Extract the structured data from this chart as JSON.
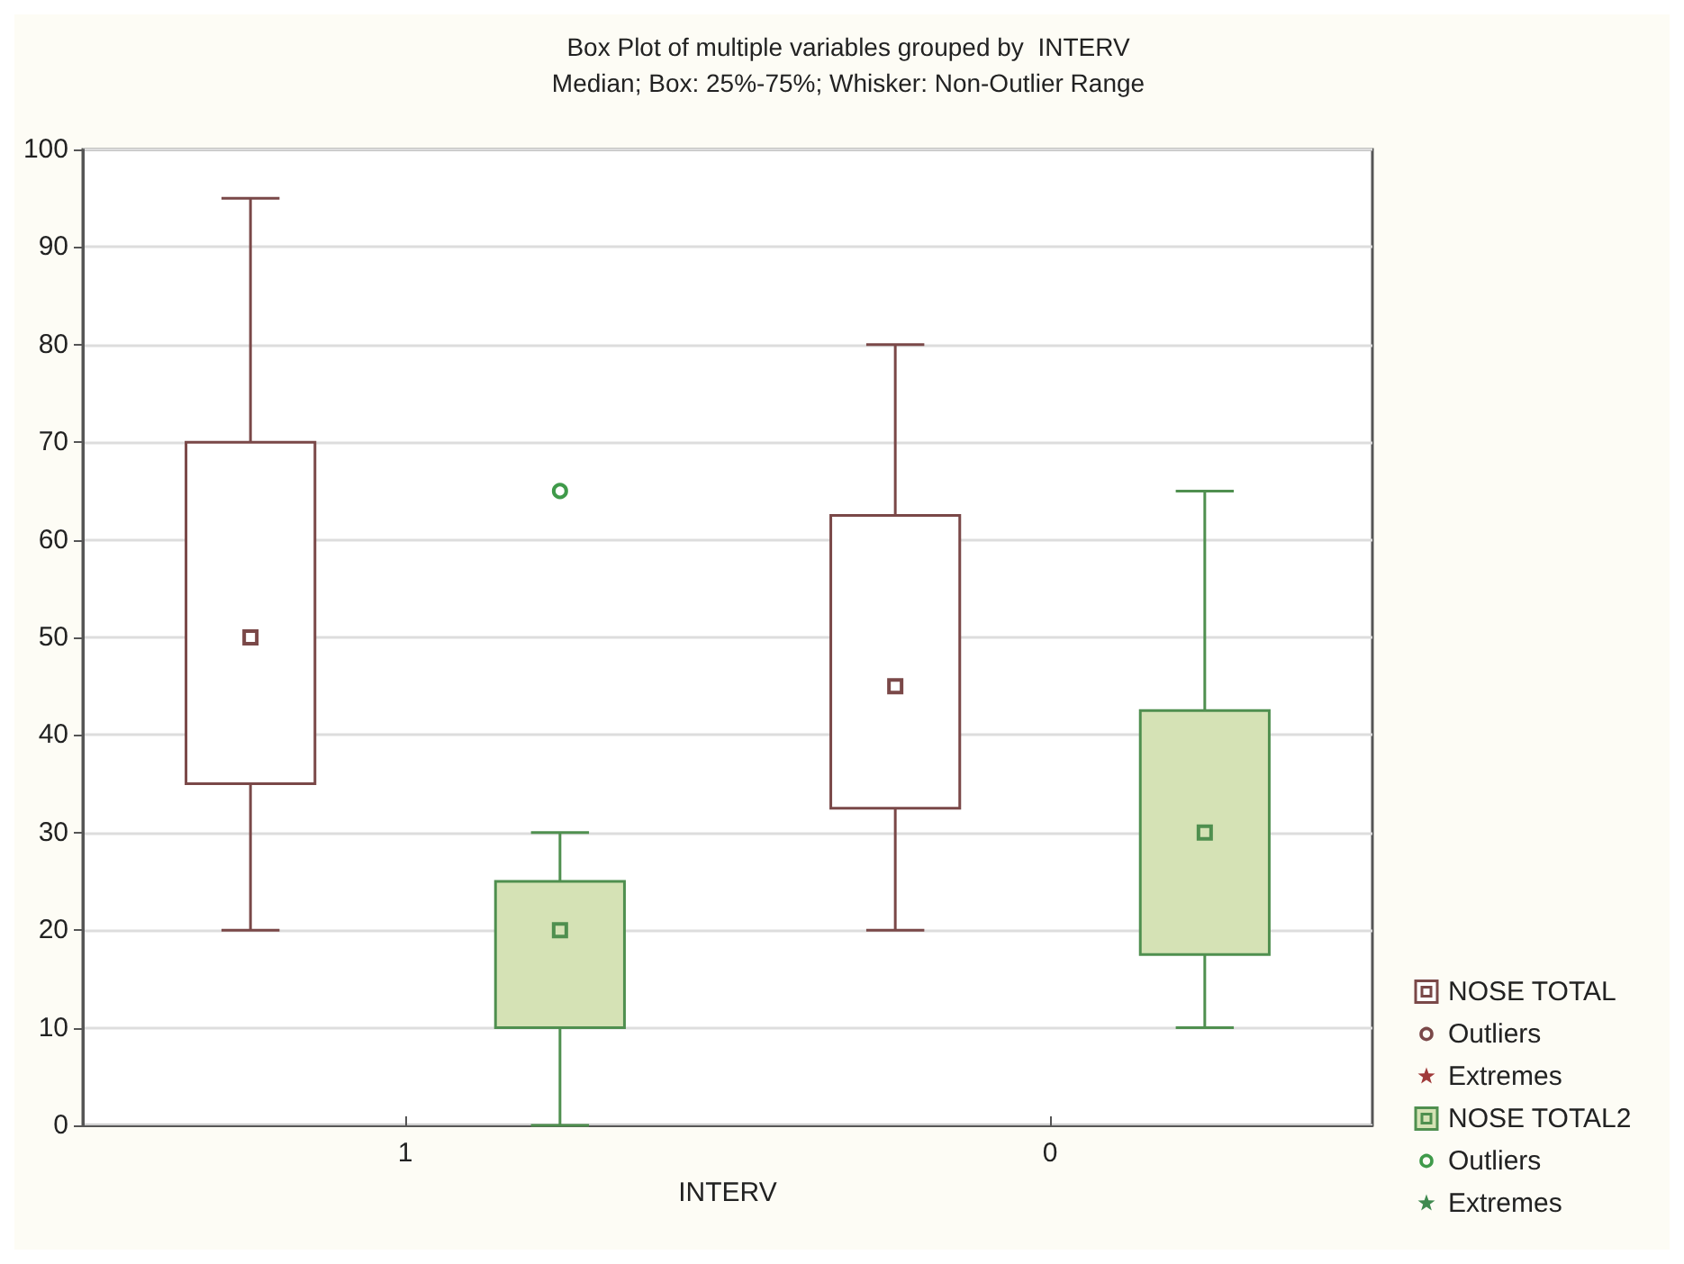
{
  "chart_data": {
    "type": "box",
    "title": "Box Plot of multiple variables grouped by  INTERV",
    "subtitle": "Median; Box: 25%-75%; Whisker: Non-Outlier Range",
    "xlabel": "INTERV",
    "categories": [
      "1",
      "0"
    ],
    "ylim": [
      0,
      100
    ],
    "yticks": [
      0,
      10,
      20,
      30,
      40,
      50,
      60,
      70,
      80,
      90,
      100
    ],
    "grid": "y",
    "legend": "bottom right",
    "series": [
      {
        "name": "NOSE TOTAL",
        "color": "#7a4848",
        "colors": [
          "#ffffff",
          "#ffffff"
        ],
        "boxes": [
          {
            "low": 20,
            "q1": 35,
            "median": 50,
            "q3": 70,
            "high": 95
          },
          {
            "low": 20,
            "q1": 32.5,
            "median": 45,
            "q3": 62.5,
            "high": 80
          }
        ]
      },
      {
        "name": "Outliers",
        "type": "scatter",
        "color": "#7a4848",
        "marker": "circle",
        "values": [
          null,
          null
        ]
      },
      {
        "name": "Extremes",
        "type": "scatter",
        "color": "#a03a3a",
        "marker": "star",
        "values": [
          null,
          null
        ]
      },
      {
        "name": "NOSE TOTAL2",
        "color": "#4f8f4f",
        "colors": [
          "#d5e2b5",
          "#d5e2b5"
        ],
        "boxes": [
          {
            "low": 0,
            "q1": 10,
            "median": 20,
            "q3": 25,
            "high": 30
          },
          {
            "low": 10,
            "q1": 17.5,
            "median": 30,
            "q3": 42.5,
            "high": 65
          }
        ]
      },
      {
        "name": "Outliers",
        "type": "scatter",
        "color": "#3f9a4a",
        "marker": "circle",
        "values": [
          65,
          null
        ]
      },
      {
        "name": "Extremes",
        "type": "scatter",
        "color": "#3f8a4f",
        "marker": "star",
        "values": [
          null,
          null
        ]
      }
    ]
  }
}
